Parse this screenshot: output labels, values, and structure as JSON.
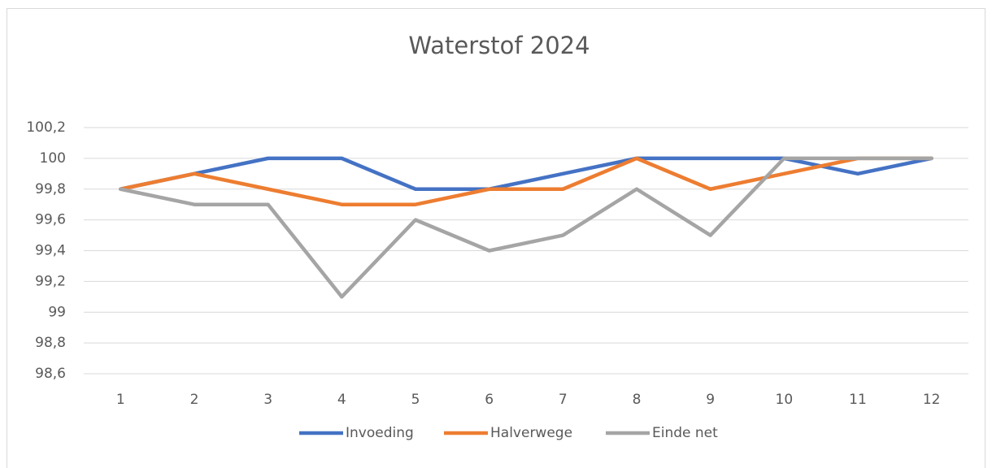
{
  "chart_data": {
    "type": "line",
    "title": "Waterstof 2024",
    "categories": [
      1,
      2,
      3,
      4,
      5,
      6,
      7,
      8,
      9,
      10,
      11,
      12
    ],
    "series": [
      {
        "name": "Invoeding",
        "color": "#4472c4",
        "values": [
          99.8,
          99.9,
          100,
          100,
          99.8,
          99.8,
          99.9,
          100,
          100,
          100,
          99.9,
          100
        ]
      },
      {
        "name": "Halverwege",
        "color": "#ed7d31",
        "values": [
          99.8,
          99.9,
          99.8,
          99.7,
          99.7,
          99.8,
          99.8,
          100,
          99.8,
          99.9,
          100,
          100
        ]
      },
      {
        "name": "Einde net",
        "color": "#a5a5a5",
        "values": [
          99.8,
          99.7,
          99.7,
          99.1,
          99.6,
          99.4,
          99.5,
          99.8,
          99.5,
          100,
          100,
          100
        ]
      }
    ],
    "ylim": [
      98.6,
      100.2
    ],
    "yticks": [
      {
        "value": 98.6,
        "label": "98,6"
      },
      {
        "value": 98.8,
        "label": "98,8"
      },
      99,
      {
        "value": 99.2,
        "label": "99,2"
      },
      {
        "value": 99.4,
        "label": "99,4"
      },
      {
        "value": 99.6,
        "label": "99,6"
      },
      {
        "value": 99.8,
        "label": "99,8"
      },
      100,
      {
        "value": 100.2,
        "label": "100,2"
      }
    ],
    "grid": true,
    "legend": "bottom"
  }
}
